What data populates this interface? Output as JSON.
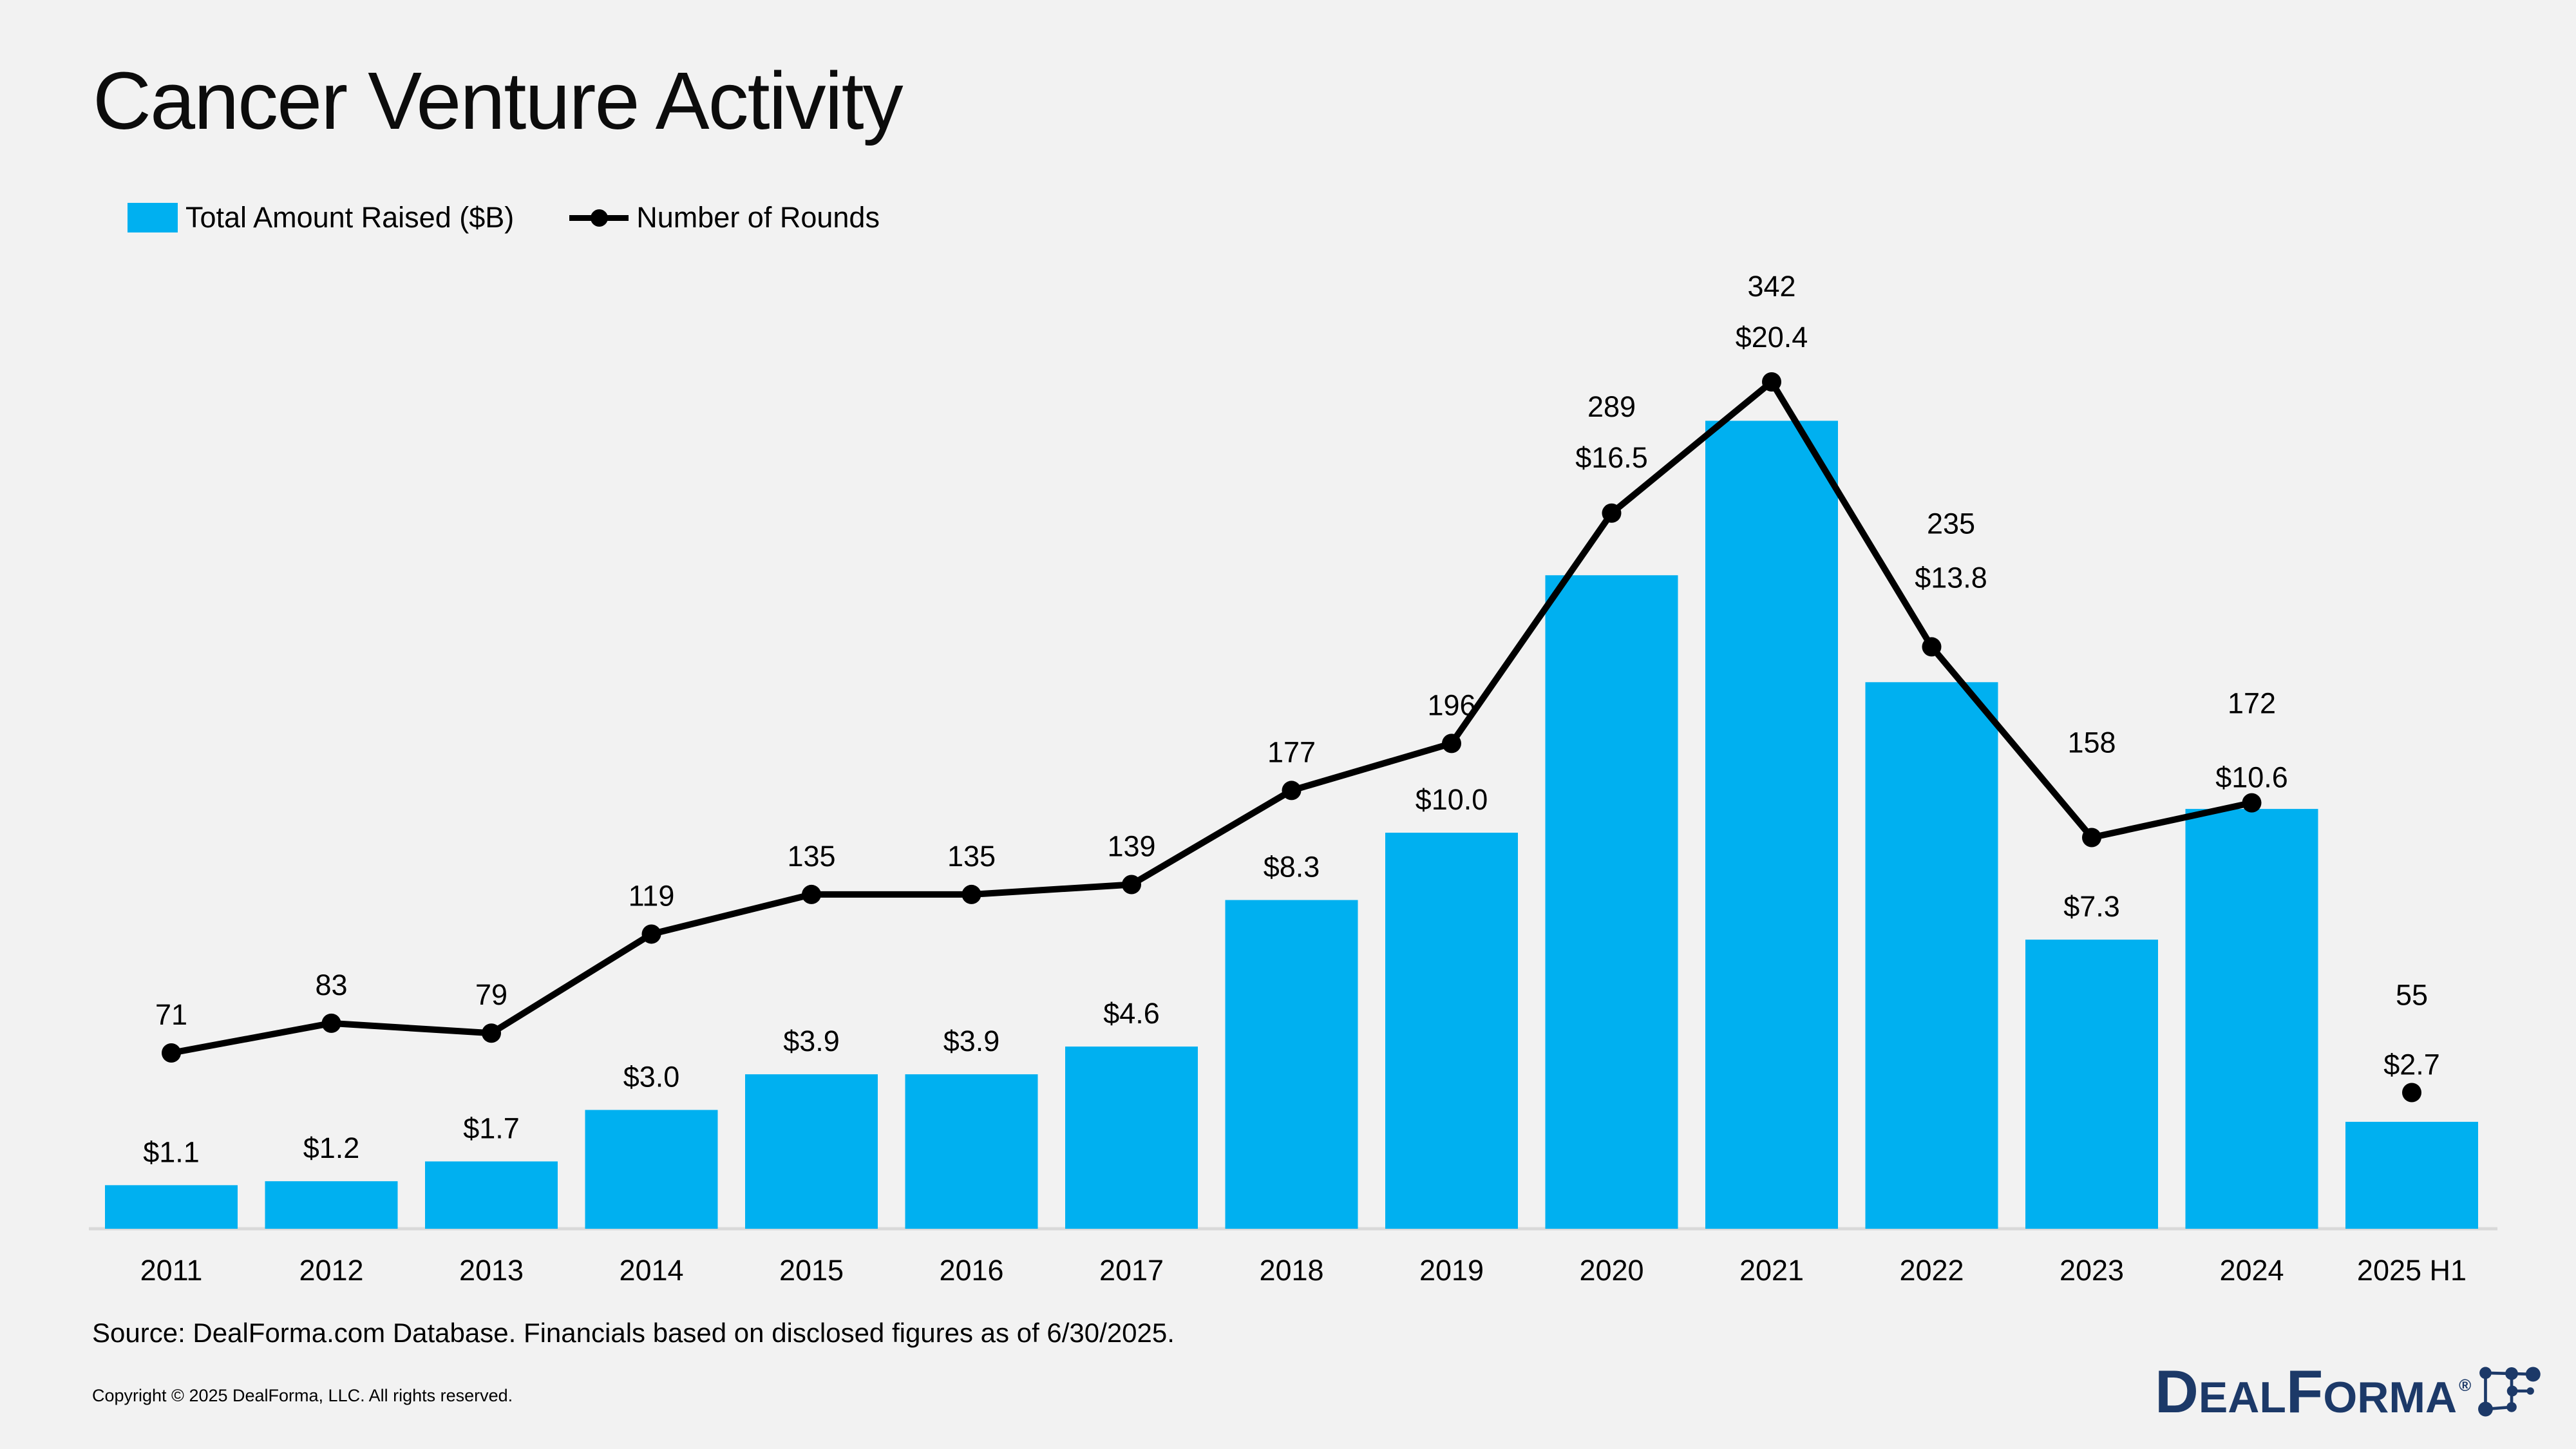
{
  "title": "Cancer Venture Activity",
  "legend": {
    "amount_label": "Total Amount Raised ($B)",
    "rounds_label": "Number of Rounds"
  },
  "footer": {
    "source": "Source: DealForma.com Database. Financials based on disclosed figures as of 6/30/2025.",
    "copyright": "Copyright © 2025 DealForma, LLC. All rights reserved."
  },
  "logo": {
    "brand": "DealForma",
    "registered": "®"
  },
  "colors": {
    "bar": "#00B0F0",
    "line": "#000000",
    "background": "#F2F2F2",
    "axis_line": "#D9D9D9",
    "logo_navy": "#1C3968",
    "title_text": "#0C0C0C"
  },
  "chart_data": {
    "type": "combo bar+line",
    "categories": [
      "2011",
      "2012",
      "2013",
      "2014",
      "2015",
      "2016",
      "2017",
      "2018",
      "2019",
      "2020",
      "2021",
      "2022",
      "2023",
      "2024",
      "2025 H1"
    ],
    "series": [
      {
        "name": "Total Amount Raised ($B)",
        "type": "bar",
        "color": "#00B0F0",
        "values": [
          1.1,
          1.2,
          1.7,
          3.0,
          3.9,
          3.9,
          4.6,
          8.3,
          10.0,
          16.5,
          20.4,
          13.8,
          7.3,
          10.6,
          2.7
        ],
        "label_prefix": "$",
        "label_decimals": 1
      },
      {
        "name": "Number of Rounds",
        "type": "line",
        "color": "#000000",
        "values": [
          71,
          83,
          79,
          119,
          135,
          135,
          139,
          177,
          196,
          289,
          342,
          235,
          158,
          172,
          55
        ],
        "last_point_isolated": true
      }
    ],
    "bar_axis_range": [
      0,
      22
    ],
    "line_axis_range": [
      0,
      390
    ],
    "gridlines": false,
    "value_axes_visible": false,
    "data_labels": true,
    "legend_position": "top-left"
  }
}
